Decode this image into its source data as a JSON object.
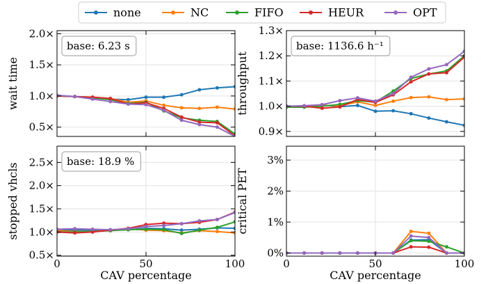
{
  "legend": [
    {
      "name": "none",
      "color": "#1f77b4"
    },
    {
      "name": "NC",
      "color": "#ff7f0e"
    },
    {
      "name": "FIFO",
      "color": "#2ca02c"
    },
    {
      "name": "HEUR",
      "color": "#d62728"
    },
    {
      "name": "OPT",
      "color": "#9467bd"
    }
  ],
  "chart_data": [
    {
      "type": "line",
      "ylabel": "wait time",
      "xlabel": "",
      "annotation": "base: 6.23 s",
      "x": [
        0,
        10,
        20,
        30,
        40,
        50,
        60,
        70,
        80,
        90,
        100
      ],
      "xlim": [
        0,
        100
      ],
      "ylim": [
        0.35,
        2.05
      ],
      "xticks": [
        0,
        50,
        100
      ],
      "xtick_labels": [
        "",
        "",
        ""
      ],
      "yticks": [
        0.5,
        1.0,
        1.5,
        2.0
      ],
      "ytick_labels": [
        "0.5×",
        "1.0×",
        "1.5×",
        "2.0×"
      ],
      "grid": true,
      "series": [
        {
          "name": "none",
          "values": [
            1.01,
            0.99,
            0.97,
            0.95,
            0.94,
            0.98,
            0.98,
            1.02,
            1.1,
            1.13,
            1.15
          ]
        },
        {
          "name": "NC",
          "values": [
            1.0,
            0.99,
            0.98,
            0.96,
            0.9,
            0.92,
            0.85,
            0.81,
            0.8,
            0.82,
            0.79
          ]
        },
        {
          "name": "FIFO",
          "values": [
            1.0,
            0.99,
            0.97,
            0.94,
            0.88,
            0.9,
            0.76,
            0.65,
            0.61,
            0.59,
            0.39
          ]
        },
        {
          "name": "HEUR",
          "values": [
            1.0,
            0.99,
            0.98,
            0.96,
            0.87,
            0.89,
            0.8,
            0.66,
            0.58,
            0.57,
            0.36
          ]
        },
        {
          "name": "OPT",
          "values": [
            1.01,
            0.99,
            0.95,
            0.91,
            0.87,
            0.86,
            0.77,
            0.61,
            0.54,
            0.5,
            0.35
          ]
        }
      ]
    },
    {
      "type": "line",
      "ylabel": "throughput",
      "xlabel": "",
      "annotation": "base: 1136.6 h⁻¹",
      "x": [
        0,
        10,
        20,
        30,
        40,
        50,
        60,
        70,
        80,
        90,
        100
      ],
      "xlim": [
        0,
        100
      ],
      "ylim": [
        0.88,
        1.3
      ],
      "xticks": [
        0,
        50,
        100
      ],
      "xtick_labels": [
        "",
        "",
        ""
      ],
      "yticks": [
        0.9,
        1.0,
        1.1,
        1.2,
        1.3
      ],
      "ytick_labels": [
        "0.9×",
        "1.0×",
        "1.1×",
        "1.2×",
        "1.3×"
      ],
      "grid": true,
      "series": [
        {
          "name": "none",
          "values": [
            1.0,
            0.998,
            1.005,
            0.998,
            1.003,
            0.98,
            0.982,
            0.97,
            0.953,
            0.938,
            0.924
          ]
        },
        {
          "name": "NC",
          "values": [
            1.0,
            1.0,
            1.003,
            1.002,
            1.017,
            1.003,
            1.02,
            1.034,
            1.037,
            1.026,
            1.029
          ]
        },
        {
          "name": "FIFO",
          "values": [
            0.996,
            0.996,
            1.0,
            1.007,
            1.022,
            1.016,
            1.06,
            1.11,
            1.128,
            1.14,
            1.2
          ]
        },
        {
          "name": "HEUR",
          "values": [
            1.0,
            1.0,
            0.992,
            0.997,
            1.027,
            1.015,
            1.045,
            1.097,
            1.128,
            1.133,
            1.195
          ]
        },
        {
          "name": "OPT",
          "values": [
            1.0,
            1.002,
            1.006,
            1.022,
            1.033,
            1.02,
            1.05,
            1.115,
            1.148,
            1.165,
            1.218
          ]
        }
      ]
    },
    {
      "type": "line",
      "ylabel": "stopped vhcls",
      "xlabel": "CAV percentage",
      "annotation": "base: 18.9 %",
      "x": [
        0,
        10,
        20,
        30,
        40,
        50,
        60,
        70,
        80,
        90,
        100
      ],
      "xlim": [
        0,
        100
      ],
      "ylim": [
        0.48,
        2.85
      ],
      "xticks": [
        0,
        50,
        100
      ],
      "xtick_labels": [
        "0",
        "50",
        "100"
      ],
      "yticks": [
        0.5,
        1.0,
        1.5,
        2.0,
        2.5
      ],
      "ytick_labels": [
        "0.5×",
        "1.0×",
        "1.5×",
        "2.0×",
        "2.5×"
      ],
      "grid": true,
      "series": [
        {
          "name": "none",
          "values": [
            1.05,
            1.04,
            1.04,
            1.04,
            1.05,
            1.08,
            1.07,
            1.04,
            1.06,
            1.09,
            1.08
          ]
        },
        {
          "name": "NC",
          "values": [
            1.03,
            1.01,
            1.01,
            1.04,
            1.07,
            1.04,
            1.03,
            0.98,
            1.03,
            1.01,
            0.98
          ]
        },
        {
          "name": "FIFO",
          "values": [
            1.0,
            1.0,
            1.01,
            1.03,
            1.05,
            1.06,
            1.05,
            0.97,
            1.04,
            1.1,
            1.22
          ]
        },
        {
          "name": "HEUR",
          "values": [
            1.0,
            0.98,
            1.0,
            1.04,
            1.08,
            1.16,
            1.19,
            1.18,
            1.21,
            1.27,
            1.43
          ]
        },
        {
          "name": "OPT",
          "values": [
            1.06,
            1.07,
            1.06,
            1.05,
            1.07,
            1.12,
            1.14,
            1.18,
            1.24,
            1.27,
            1.42
          ]
        }
      ]
    },
    {
      "type": "line",
      "ylabel": "critical PET",
      "xlabel": "CAV percentage",
      "annotation": "",
      "x": [
        0,
        10,
        20,
        30,
        40,
        50,
        60,
        70,
        80,
        90,
        100
      ],
      "xlim": [
        0,
        100
      ],
      "ylim": [
        -0.1,
        3.45
      ],
      "xticks": [
        0,
        50,
        100
      ],
      "xtick_labels": [
        "0",
        "50",
        "100"
      ],
      "yticks": [
        0,
        1,
        2,
        3
      ],
      "ytick_labels": [
        "0%",
        "1%",
        "2%",
        "3%"
      ],
      "grid": true,
      "series": [
        {
          "name": "none",
          "values": [
            0,
            0,
            0,
            0,
            0,
            0,
            0,
            0.42,
            0.43,
            0,
            0
          ]
        },
        {
          "name": "NC",
          "values": [
            0,
            0,
            0,
            0,
            0,
            0,
            0,
            0.7,
            0.64,
            0,
            0
          ]
        },
        {
          "name": "FIFO",
          "values": [
            0,
            0,
            0,
            0,
            0,
            0,
            0,
            0.4,
            0.38,
            0.2,
            0
          ]
        },
        {
          "name": "HEUR",
          "values": [
            0,
            0,
            0,
            0,
            0,
            0,
            0,
            0.2,
            0.19,
            0,
            0
          ]
        },
        {
          "name": "OPT",
          "values": [
            0,
            0,
            0,
            0,
            0,
            0,
            0,
            0.55,
            0.5,
            0,
            0
          ]
        }
      ]
    }
  ]
}
